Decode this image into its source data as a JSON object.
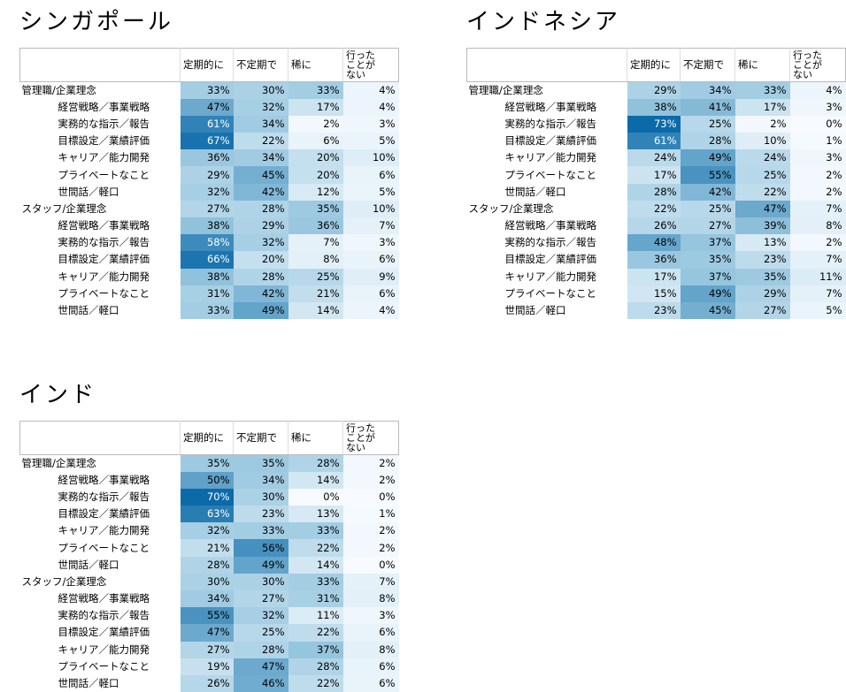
{
  "chart_data": [
    {
      "type": "table",
      "title": "シンガポール",
      "columns": [
        "定期的に",
        "不定期で",
        "稀に",
        "行ったことがない"
      ],
      "rows": [
        {
          "label": "管理職/企業理念",
          "level": 0,
          "values": [
            33,
            30,
            33,
            4
          ]
        },
        {
          "label": "経営戦略／事業戦略",
          "level": 1,
          "values": [
            47,
            32,
            17,
            4
          ]
        },
        {
          "label": "実務的な指示／報告",
          "level": 1,
          "values": [
            61,
            34,
            2,
            3
          ]
        },
        {
          "label": "目標設定／業績評価",
          "level": 1,
          "values": [
            67,
            22,
            6,
            5
          ]
        },
        {
          "label": "キャリア／能力開発",
          "level": 1,
          "values": [
            36,
            34,
            20,
            10
          ]
        },
        {
          "label": "プライベートなこと",
          "level": 1,
          "values": [
            29,
            45,
            20,
            6
          ]
        },
        {
          "label": "世間話／軽口",
          "level": 1,
          "values": [
            32,
            42,
            12,
            5
          ]
        },
        {
          "label": "スタッフ/企業理念",
          "level": 0,
          "values": [
            27,
            28,
            35,
            10
          ]
        },
        {
          "label": "経営戦略／事業戦略",
          "level": 1,
          "values": [
            38,
            29,
            36,
            7
          ]
        },
        {
          "label": "実務的な指示／報告",
          "level": 1,
          "values": [
            58,
            32,
            7,
            3
          ]
        },
        {
          "label": "目標設定／業績評価",
          "level": 1,
          "values": [
            66,
            20,
            8,
            6
          ]
        },
        {
          "label": "キャリア／能力開発",
          "level": 1,
          "values": [
            38,
            28,
            25,
            9
          ]
        },
        {
          "label": "プライベートなこと",
          "level": 1,
          "values": [
            31,
            42,
            21,
            6
          ]
        },
        {
          "label": "世間話／軽口",
          "level": 1,
          "values": [
            33,
            49,
            14,
            4
          ]
        }
      ]
    },
    {
      "type": "table",
      "title": "インドネシア",
      "columns": [
        "定期的に",
        "不定期で",
        "稀に",
        "行ったことがない"
      ],
      "rows": [
        {
          "label": "管理職/企業理念",
          "level": 0,
          "values": [
            29,
            34,
            33,
            4
          ]
        },
        {
          "label": "経営戦略／事業戦略",
          "level": 1,
          "values": [
            38,
            41,
            17,
            3
          ]
        },
        {
          "label": "実務的な指示／報告",
          "level": 1,
          "values": [
            73,
            25,
            2,
            0
          ]
        },
        {
          "label": "目標設定／業績評価",
          "level": 1,
          "values": [
            61,
            28,
            10,
            1
          ]
        },
        {
          "label": "キャリア／能力開発",
          "level": 1,
          "values": [
            24,
            49,
            24,
            3
          ]
        },
        {
          "label": "プライベートなこと",
          "level": 1,
          "values": [
            17,
            55,
            25,
            2
          ]
        },
        {
          "label": "世間話／軽口",
          "level": 1,
          "values": [
            28,
            42,
            22,
            2
          ]
        },
        {
          "label": "スタッフ/企業理念",
          "level": 0,
          "values": [
            22,
            25,
            47,
            7
          ]
        },
        {
          "label": "経営戦略／事業戦略",
          "level": 1,
          "values": [
            26,
            27,
            39,
            8
          ]
        },
        {
          "label": "実務的な指示／報告",
          "level": 1,
          "values": [
            48,
            37,
            13,
            2
          ]
        },
        {
          "label": "目標設定／業績評価",
          "level": 1,
          "values": [
            36,
            35,
            23,
            7
          ]
        },
        {
          "label": "キャリア／能力開発",
          "level": 1,
          "values": [
            17,
            37,
            35,
            11
          ]
        },
        {
          "label": "プライベートなこと",
          "level": 1,
          "values": [
            15,
            49,
            29,
            7
          ]
        },
        {
          "label": "世間話／軽口",
          "level": 1,
          "values": [
            23,
            45,
            27,
            5
          ]
        }
      ]
    },
    {
      "type": "table",
      "title": "インド",
      "columns": [
        "定期的に",
        "不定期で",
        "稀に",
        "行ったことがない"
      ],
      "rows": [
        {
          "label": "管理職/企業理念",
          "level": 0,
          "values": [
            35,
            35,
            28,
            2
          ]
        },
        {
          "label": "経営戦略／事業戦略",
          "level": 1,
          "values": [
            50,
            34,
            14,
            2
          ]
        },
        {
          "label": "実務的な指示／報告",
          "level": 1,
          "values": [
            70,
            30,
            0,
            0
          ]
        },
        {
          "label": "目標設定／業績評価",
          "level": 1,
          "values": [
            63,
            23,
            13,
            1
          ]
        },
        {
          "label": "キャリア／能力開発",
          "level": 1,
          "values": [
            32,
            33,
            33,
            2
          ]
        },
        {
          "label": "プライベートなこと",
          "level": 1,
          "values": [
            21,
            56,
            22,
            2
          ]
        },
        {
          "label": "世間話／軽口",
          "level": 1,
          "values": [
            28,
            49,
            14,
            0
          ]
        },
        {
          "label": "スタッフ/企業理念",
          "level": 0,
          "values": [
            30,
            30,
            33,
            7
          ]
        },
        {
          "label": "経営戦略／事業戦略",
          "level": 1,
          "values": [
            34,
            27,
            31,
            8
          ]
        },
        {
          "label": "実務的な指示／報告",
          "level": 1,
          "values": [
            55,
            32,
            11,
            3
          ]
        },
        {
          "label": "目標設定／業績評価",
          "level": 1,
          "values": [
            47,
            25,
            22,
            6
          ]
        },
        {
          "label": "キャリア／能力開発",
          "level": 1,
          "values": [
            27,
            28,
            37,
            8
          ]
        },
        {
          "label": "プライベートなこと",
          "level": 1,
          "values": [
            19,
            47,
            28,
            6
          ]
        },
        {
          "label": "世間話／軽口",
          "level": 1,
          "values": [
            26,
            46,
            22,
            6
          ]
        }
      ]
    }
  ],
  "color_scale": {
    "low": "#f7fbff",
    "mid": "#9ecae1",
    "high": "#0b6aa8",
    "dark_text": "#000000",
    "light_text": "#ffffff"
  }
}
